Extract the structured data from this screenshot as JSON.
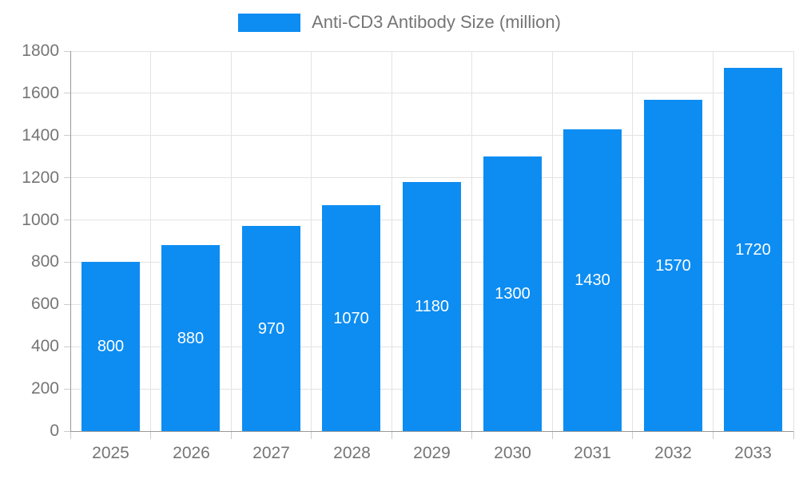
{
  "chart_data": {
    "type": "bar",
    "title": "Anti-CD3 Antibody Size (million)",
    "categories": [
      "2025",
      "2026",
      "2027",
      "2028",
      "2029",
      "2030",
      "2031",
      "2032",
      "2033"
    ],
    "values": [
      800,
      880,
      970,
      1070,
      1180,
      1300,
      1430,
      1570,
      1720
    ],
    "xlabel": "",
    "ylabel": "",
    "ylim": [
      0,
      1800
    ],
    "yticks": [
      0,
      200,
      400,
      600,
      800,
      1000,
      1200,
      1400,
      1600,
      1800
    ],
    "grid": true,
    "legend_position": "top",
    "value_labels": "white, centered vertically inside bars",
    "colors": {
      "bar": "#0d8df2",
      "value_label": "#ffffff",
      "axis_text": "#757575",
      "gridline": "#e3e3e3",
      "axis_line": "#999999",
      "tick": "#cccccc"
    }
  },
  "legend": {
    "label": "Anti-CD3 Antibody Size (million)",
    "swatch_color": "#0d8df2"
  }
}
